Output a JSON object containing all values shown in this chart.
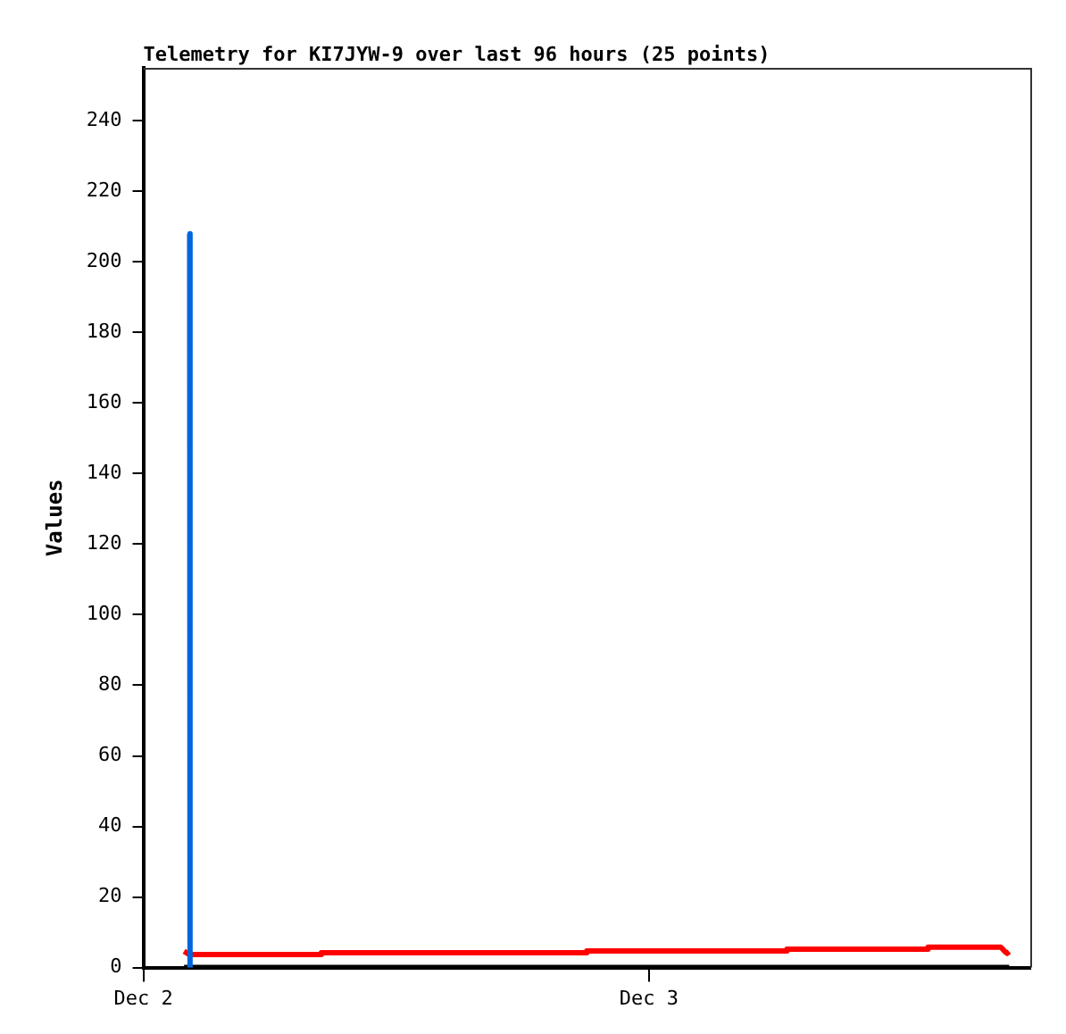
{
  "chart_data": {
    "type": "line",
    "title": "Telemetry for KI7JYW-9 over last 96 hours (25 points)",
    "ylabel": "Values",
    "xlim": [
      "--12-02T00:00",
      "--12-03T18:06"
    ],
    "xticks": [
      {
        "value": "--12-02",
        "label": "Dec 2"
      },
      {
        "value": "--12-03",
        "label": "Dec 3"
      }
    ],
    "ylim": [
      0,
      255
    ],
    "yticks": [
      0,
      20,
      40,
      60,
      80,
      100,
      120,
      140,
      160,
      180,
      200,
      220,
      240
    ],
    "grid": false,
    "legend": false,
    "marker": "none",
    "line_style": "solid",
    "series": [
      {
        "color": "#0066dd",
        "x": [
          "--12-02T02:12",
          "--12-02T02:13"
        ],
        "values": [
          208,
          0
        ]
      },
      {
        "color": "#ff0000",
        "x": [
          "--12-02T01:56",
          "--12-02T02:11",
          "--12-02T08:24",
          "--12-02T08:27",
          "--12-02T21:00",
          "--12-02T21:03",
          "--12-03T06:30",
          "--12-03T06:33",
          "--12-03T13:12",
          "--12-03T13:15",
          "--12-03T16:42",
          "--12-03T16:54",
          "--12-03T17:00",
          "--12-03T17:06"
        ],
        "values": [
          4.6,
          3.7,
          3.7,
          4.2,
          4.2,
          4.7,
          4.7,
          5.2,
          5.2,
          5.8,
          5.8,
          4.5,
          4.0,
          4.5
        ]
      },
      {
        "color": "#000000",
        "x": [
          "--12-02T01:56",
          "--12-03T17:06"
        ],
        "values": [
          0,
          0
        ]
      }
    ]
  }
}
